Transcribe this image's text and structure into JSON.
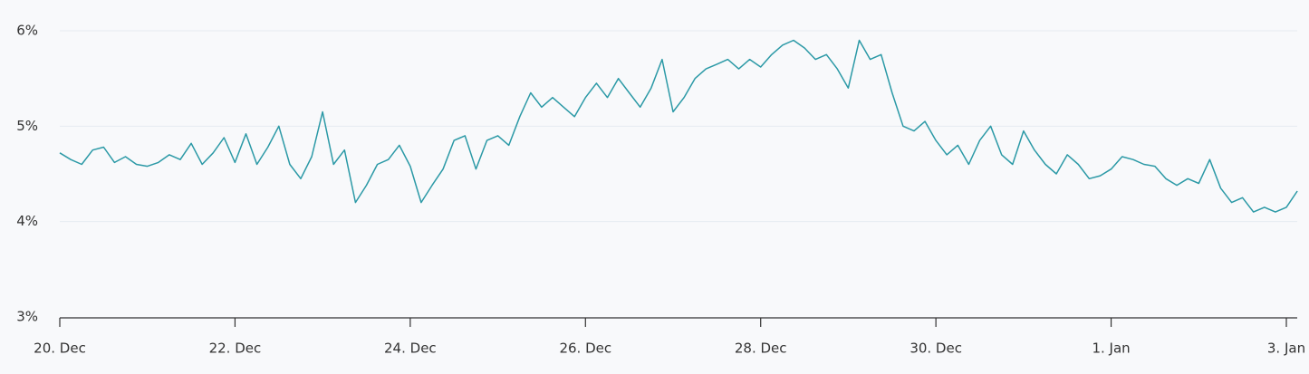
{
  "chart_data": {
    "type": "line",
    "categories": [
      "20. Dec",
      null,
      null,
      null,
      null,
      null,
      null,
      null,
      null,
      null,
      null,
      null,
      null,
      null,
      null,
      null,
      "22. Dec",
      null,
      null,
      null,
      null,
      null,
      null,
      null,
      null,
      null,
      null,
      null,
      null,
      null,
      null,
      null,
      "24. Dec",
      null,
      null,
      null,
      null,
      null,
      null,
      null,
      null,
      null,
      null,
      null,
      null,
      null,
      null,
      null,
      "26. Dec",
      null,
      null,
      null,
      null,
      null,
      null,
      null,
      null,
      null,
      null,
      null,
      null,
      null,
      null,
      null,
      "28. Dec",
      null,
      null,
      null,
      null,
      null,
      null,
      null,
      null,
      null,
      null,
      null,
      null,
      null,
      null,
      null,
      "30. Dec",
      null,
      null,
      null,
      null,
      null,
      null,
      null,
      null,
      null,
      null,
      null,
      null,
      null,
      null,
      null,
      "1. Jan",
      null,
      null,
      null,
      null,
      null,
      null,
      null,
      null,
      null,
      null,
      null,
      null,
      null,
      null,
      null,
      "3. Jan",
      null
    ],
    "values": [
      4.72,
      4.65,
      4.6,
      4.75,
      4.78,
      4.62,
      4.68,
      4.6,
      4.58,
      4.62,
      4.7,
      4.65,
      4.82,
      4.6,
      4.72,
      4.88,
      4.62,
      4.92,
      4.6,
      4.78,
      5.0,
      4.6,
      4.45,
      4.68,
      5.15,
      4.6,
      4.75,
      4.2,
      4.38,
      4.6,
      4.65,
      4.8,
      4.58,
      4.2,
      4.38,
      4.55,
      4.85,
      4.9,
      4.55,
      4.85,
      4.9,
      4.8,
      5.1,
      5.35,
      5.2,
      5.3,
      5.2,
      5.1,
      5.3,
      5.45,
      5.3,
      5.5,
      5.35,
      5.2,
      5.4,
      5.7,
      5.15,
      5.3,
      5.5,
      5.6,
      5.65,
      5.7,
      5.6,
      5.7,
      5.62,
      5.75,
      5.85,
      5.9,
      5.82,
      5.7,
      5.75,
      5.6,
      5.4,
      5.9,
      5.7,
      5.75,
      5.35,
      5.0,
      4.95,
      5.05,
      4.85,
      4.7,
      4.8,
      4.6,
      4.85,
      5.0,
      4.7,
      4.6,
      4.95,
      4.75,
      4.6,
      4.5,
      4.7,
      4.6,
      4.45,
      4.48,
      4.55,
      4.68,
      4.65,
      4.6,
      4.58,
      4.45,
      4.38,
      4.45,
      4.4,
      4.65,
      4.35,
      4.2,
      4.25,
      4.1,
      4.15,
      4.1,
      4.15,
      4.32
    ],
    "color": "#2b99a6",
    "ylim": [
      3,
      6
    ],
    "yticks": [
      {
        "value": 3,
        "label": "3%"
      },
      {
        "value": 4,
        "label": "4%"
      },
      {
        "value": 5,
        "label": "5%"
      },
      {
        "value": 6,
        "label": "6%"
      }
    ],
    "grid": true
  }
}
